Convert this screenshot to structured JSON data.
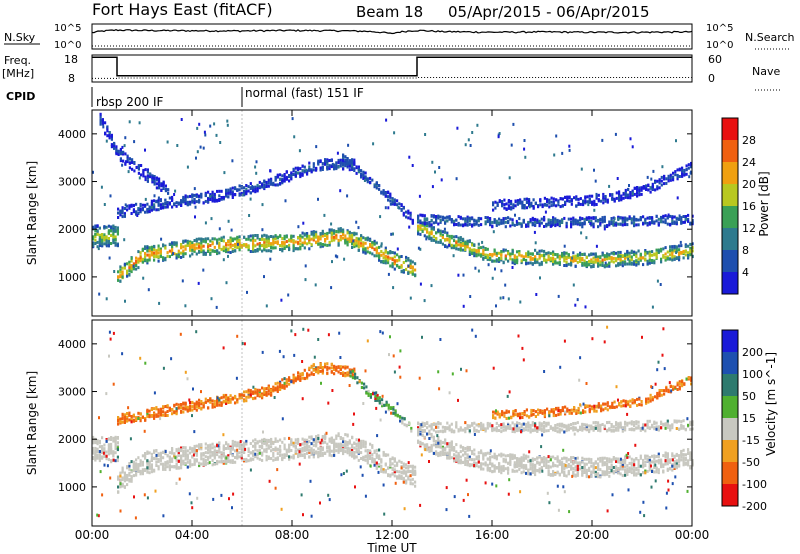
{
  "header": {
    "radar": "Fort Hays East (fitACF)",
    "beam": "Beam 18",
    "date_range": "05/Apr/2015 - 06/Apr/2015"
  },
  "aux": {
    "nsky_label": "N.Sky",
    "nsearch_label": "N.Search",
    "freq_label_1": "Freq.",
    "freq_label_2": "[MHz]",
    "nave_label": "Nave",
    "cpid_label": "CPID",
    "left_ticks_top": [
      "10^5",
      "10^0"
    ],
    "right_ticks_top": [
      "10^5",
      "10^0"
    ],
    "left_ticks_freq": [
      "18",
      "8"
    ],
    "right_ticks_freq": [
      "60",
      "0"
    ],
    "cpid_modes": [
      {
        "name": "rbsp 200 IF",
        "start_hour": 0,
        "end_hour": 6
      },
      {
        "name": "normal (fast) 151 IF",
        "start_hour": 6,
        "end_hour": 24
      }
    ]
  },
  "axes": {
    "xlabel": "Time UT",
    "ylabel": "Slant Range [km]",
    "x_ticks": [
      "00:00",
      "04:00",
      "08:00",
      "12:00",
      "16:00",
      "20:00",
      "00:00"
    ],
    "y_ticks": [
      "1000",
      "2000",
      "3000",
      "4000"
    ]
  },
  "chart_data": [
    {
      "type": "line",
      "title": "N.Sky / N.Search",
      "xlim": [
        0,
        24
      ],
      "ylog": true,
      "series": [
        {
          "name": "N.Sky",
          "x": [
            0,
            1,
            2,
            4,
            6,
            8,
            10,
            11,
            12,
            13,
            14,
            16,
            18,
            20,
            22,
            24
          ],
          "values": [
            3000,
            15000,
            12000,
            10000,
            9000,
            12000,
            10000,
            7000,
            1500,
            12000,
            6000,
            4000,
            5000,
            4000,
            4000,
            5000
          ]
        },
        {
          "name": "N.Search",
          "x": [
            0,
            24
          ],
          "values": [
            1,
            1
          ]
        }
      ]
    },
    {
      "type": "line",
      "title": "Freq. / Nave",
      "xlim": [
        0,
        24
      ],
      "series": [
        {
          "name": "Freq. [MHz]",
          "x": [
            0,
            1.0,
            1.0,
            13.0,
            13.0,
            24
          ],
          "values": [
            17.2,
            17.2,
            10.3,
            10.3,
            17.2,
            17.2
          ]
        },
        {
          "name": "Nave",
          "x": [
            0,
            1,
            1,
            13,
            13,
            24
          ],
          "values": [
            8,
            8,
            9,
            9,
            10,
            10
          ]
        }
      ]
    },
    {
      "type": "heatmap",
      "title": "Power [dB]",
      "xlabel": "Time UT",
      "ylabel": "Slant Range [km]",
      "xlim": [
        0,
        24
      ],
      "ylim": [
        180,
        4500
      ],
      "colorbar_label": "Power [dB]",
      "colorbar_ticks": [
        4,
        8,
        12,
        16,
        20,
        24,
        28
      ],
      "colorbar_colors": [
        "#1a1ad8",
        "#1e4fae",
        "#2e7a8e",
        "#3aa056",
        "#b8c820",
        "#f0a010",
        "#f06010",
        "#e81010"
      ],
      "bands": [
        {
          "x": [
            1,
            2,
            4,
            6,
            8,
            10,
            11,
            12,
            12.9
          ],
          "y": [
            1000,
            1450,
            1620,
            1700,
            1720,
            1850,
            1650,
            1350,
            1150
          ],
          "width_km": 350,
          "value": 22
        },
        {
          "x": [
            13,
            14,
            16,
            18,
            20,
            22,
            24
          ],
          "y": [
            2050,
            1800,
            1450,
            1400,
            1350,
            1400,
            1550
          ],
          "width_km": 300,
          "value": 20
        },
        {
          "x": [
            0,
            1
          ],
          "y": [
            1850,
            1850
          ],
          "width_km": 450,
          "value": 16
        },
        {
          "x": [
            1,
            3,
            5,
            7,
            9,
            10.5
          ],
          "y": [
            2350,
            2550,
            2700,
            2950,
            3350,
            3350
          ],
          "width_km": 220,
          "value": 6
        },
        {
          "x": [
            10,
            11,
            12,
            12.8
          ],
          "y": [
            3500,
            3050,
            2600,
            2200
          ],
          "width_km": 180,
          "value": 6
        },
        {
          "x": [
            16,
            18,
            20,
            22,
            24
          ],
          "y": [
            2500,
            2550,
            2600,
            2800,
            3300
          ],
          "width_km": 200,
          "value": 5
        },
        {
          "x": [
            0.3,
            1,
            2,
            3
          ],
          "y": [
            4300,
            3600,
            3200,
            2800
          ],
          "width_km": 250,
          "value": 5
        },
        {
          "x": [
            13,
            16,
            20,
            24
          ],
          "y": [
            2200,
            2150,
            2150,
            2200
          ],
          "width_km": 200,
          "value": 8
        }
      ]
    },
    {
      "type": "heatmap",
      "title": "Velocity [m s^-1]",
      "xlabel": "Time UT",
      "ylabel": "Slant Range [km]",
      "xlim": [
        0,
        24
      ],
      "ylim": [
        180,
        4500
      ],
      "colorbar_label": "Velocity [m s^-1]",
      "colorbar_ticks": [
        200,
        100,
        50,
        15,
        -15,
        -50,
        -100,
        -200
      ],
      "colorbar_colors": [
        "#1a1ad8",
        "#1e50b0",
        "#2e7a6e",
        "#50b030",
        "#c8c8c0",
        "#f0a020",
        "#f06010",
        "#e81010"
      ],
      "bands": [
        {
          "x": [
            1,
            2,
            4,
            6,
            8,
            10,
            11,
            12,
            12.9
          ],
          "y": [
            1100,
            1500,
            1650,
            1750,
            1800,
            1900,
            1700,
            1400,
            1200
          ],
          "width_km": 450,
          "value": 0
        },
        {
          "x": [
            13,
            14,
            16,
            18,
            20,
            22,
            24
          ],
          "y": [
            2050,
            1800,
            1500,
            1450,
            1400,
            1450,
            1600
          ],
          "width_km": 400,
          "value": 0
        },
        {
          "x": [
            0,
            1
          ],
          "y": [
            1800,
            1800
          ],
          "width_km": 500,
          "value": 0
        },
        {
          "x": [
            1,
            3,
            5,
            7,
            9,
            10.5
          ],
          "y": [
            2400,
            2600,
            2800,
            3000,
            3500,
            3400
          ],
          "width_km": 220,
          "value": -60
        },
        {
          "x": [
            10.3,
            11,
            12,
            12.8
          ],
          "y": [
            3400,
            3000,
            2600,
            2200
          ],
          "width_km": 160,
          "value": 40
        },
        {
          "x": [
            16,
            18,
            20,
            22,
            24
          ],
          "y": [
            2500,
            2550,
            2650,
            2800,
            3250
          ],
          "width_km": 160,
          "value": -60
        },
        {
          "x": [
            13,
            16,
            20,
            24
          ],
          "y": [
            2250,
            2250,
            2250,
            2300
          ],
          "width_km": 200,
          "value": 0
        }
      ]
    }
  ]
}
